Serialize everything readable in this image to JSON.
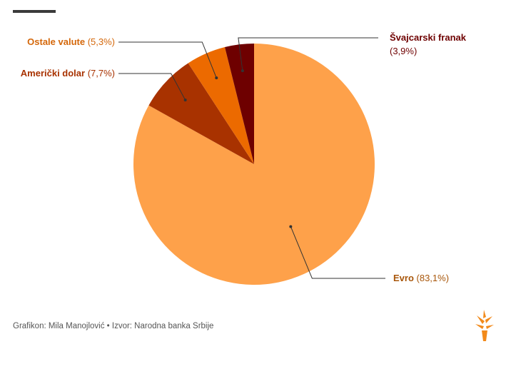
{
  "chart_data": {
    "type": "pie",
    "slices": [
      {
        "name": "Evro",
        "value": 83.1,
        "pct_label": "(83,1%)",
        "color": "#fea14a",
        "label_color": "#a8560a"
      },
      {
        "name": "Američki dolar",
        "value": 7.7,
        "pct_label": "(7,7%)",
        "color": "#a83200",
        "label_color": "#a83200"
      },
      {
        "name": "Ostale valute",
        "value": 5.3,
        "pct_label": "(5,3%)",
        "color": "#ec6a00",
        "label_color": "#d4670a"
      },
      {
        "name": "Švajcarski franak",
        "value": 3.9,
        "pct_label": "(3,9%)",
        "color": "#6e0000",
        "label_color": "#6e0000"
      }
    ],
    "start_angle_deg": 0,
    "direction": "clockwise"
  },
  "footer": {
    "credit": "Grafikon: Mila Manojlović • Izvor: Narodna banka Srbije"
  },
  "brand": {
    "logo_icon": "torch-logo-icon",
    "accent": "#f28a1b"
  }
}
